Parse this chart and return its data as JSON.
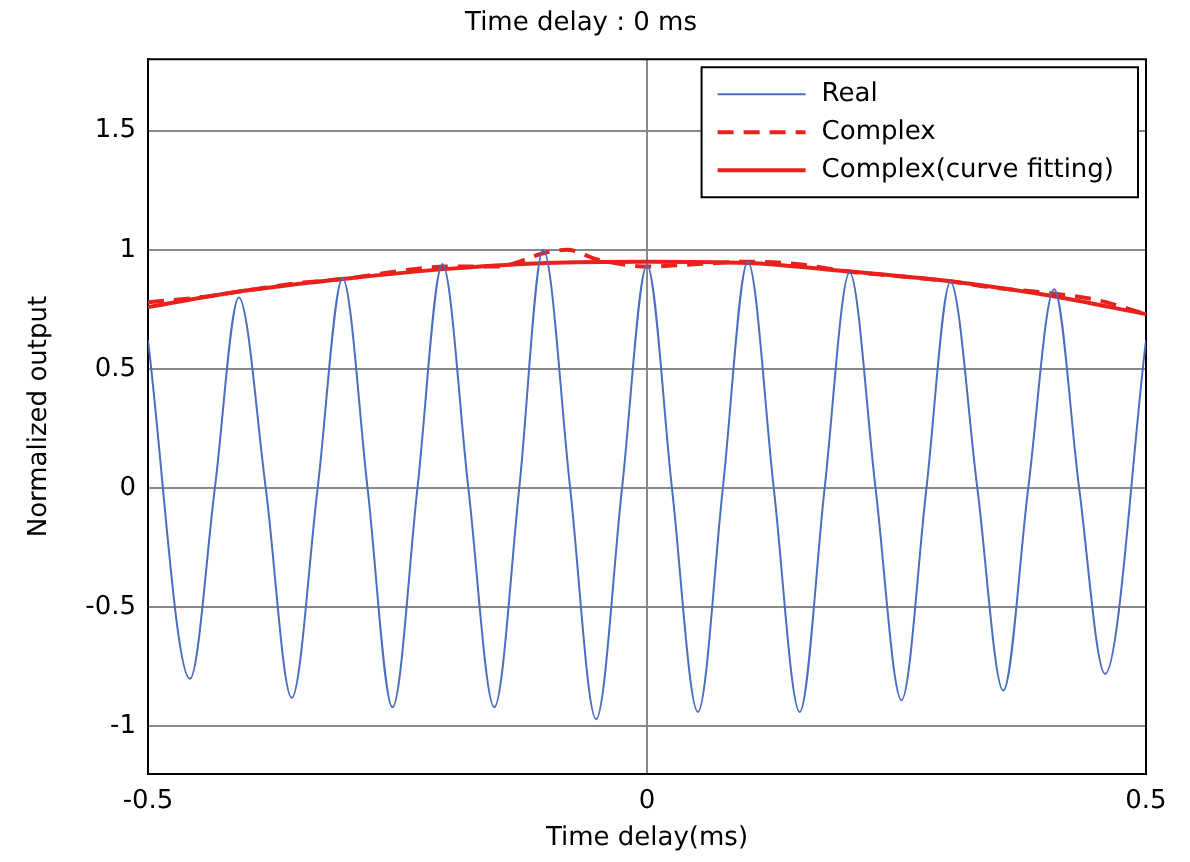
{
  "chart_data": {
    "type": "line",
    "title": "Time delay : 0 ms",
    "xlabel": "Time delay(ms)",
    "ylabel": "Normalized output",
    "xlim": [
      -0.5,
      0.5
    ],
    "ylim": [
      -1.2,
      1.8
    ],
    "xticks": [
      -0.5,
      0,
      0.5
    ],
    "yticks": [
      -1,
      -0.5,
      0,
      0.5,
      1,
      1.5
    ],
    "grid": true,
    "legend": "top right",
    "marker": "none",
    "series": [
      {
        "name": "Real",
        "color": "#4a6ec0",
        "line_style": "solid",
        "x": [
          -0.5,
          -0.458,
          -0.433,
          -0.409,
          -0.382,
          -0.356,
          -0.33,
          -0.305,
          -0.28,
          -0.255,
          -0.23,
          -0.205,
          -0.179,
          -0.153,
          -0.128,
          -0.104,
          -0.077,
          -0.051,
          -0.025,
          0,
          0.025,
          0.051,
          0.076,
          0.101,
          0.127,
          0.153,
          0.178,
          0.203,
          0.229,
          0.255,
          0.28,
          0.304,
          0.331,
          0.357,
          0.382,
          0.408,
          0.433,
          0.459,
          0.5
        ],
        "values": [
          0.62,
          -0.8,
          0,
          0.8,
          0,
          -0.88,
          0,
          0.88,
          0,
          -0.92,
          0,
          0.94,
          0,
          -0.92,
          0,
          1,
          0,
          -0.97,
          0,
          0.935,
          0,
          -0.94,
          0,
          0.95,
          0,
          -0.94,
          0,
          0.905,
          0,
          -0.89,
          0,
          0.865,
          0,
          -0.85,
          0,
          0.835,
          0,
          -0.78,
          0.62
        ]
      },
      {
        "name": "Complex",
        "color": "#e8211d",
        "line_style": "dashed",
        "x": [
          -0.5,
          -0.45,
          -0.4,
          -0.35,
          -0.3,
          -0.25,
          -0.2,
          -0.15,
          -0.1,
          -0.08,
          -0.05,
          0,
          0.05,
          0.1,
          0.15,
          0.2,
          0.25,
          0.3,
          0.35,
          0.4,
          0.45,
          0.5
        ],
        "values": [
          0.78,
          0.8,
          0.83,
          0.86,
          0.88,
          0.91,
          0.93,
          0.93,
          0.99,
          1,
          0.96,
          0.93,
          0.94,
          0.95,
          0.94,
          0.91,
          0.89,
          0.87,
          0.84,
          0.82,
          0.79,
          0.73
        ]
      },
      {
        "name": "Complex(curve fitting)",
        "color": "#e8211d",
        "line_style": "solid",
        "x": [
          -0.5,
          -0.4,
          -0.3,
          -0.2,
          -0.1,
          0,
          0.1,
          0.2,
          0.3,
          0.4,
          0.5
        ],
        "values": [
          0.76,
          0.83,
          0.88,
          0.92,
          0.945,
          0.95,
          0.945,
          0.91,
          0.87,
          0.81,
          0.73
        ]
      }
    ]
  }
}
